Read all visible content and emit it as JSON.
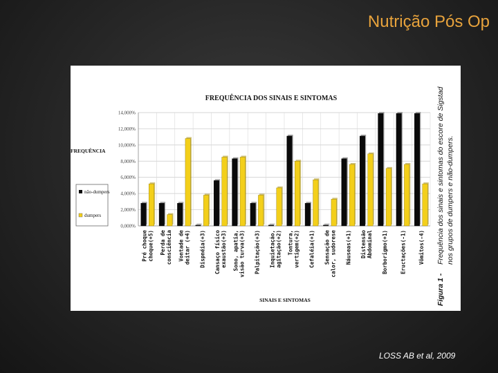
{
  "slide": {
    "title": "Nutrição Pós Op",
    "citation": "LOSS AB et al, 2009"
  },
  "figure_caption": {
    "label": "Figura 1 -",
    "text_line1": "Frequência dos sinais e sintomas do escore de Sigstad",
    "text_line2": "nos grupos de dumpers e não-dumpers."
  },
  "colors": {
    "nao_dumpers": "#0a0a0a",
    "dumpers": "#f3cf1a",
    "slide_title": "#e8a33c"
  },
  "chart_data": {
    "type": "bar",
    "title": "FREQUÊNCIA DOS SINAIS E SINTOMAS",
    "xlabel": "SINAIS E SINTOMAS",
    "ylabel": "FREQUÊNCIA",
    "ylim": [
      0,
      14
    ],
    "ytick_labels": [
      "0,000%",
      "2,000%",
      "4,000%",
      "6,000%",
      "8,000%",
      "10,000%",
      "12,000%",
      "14,000%"
    ],
    "legend_position": "left",
    "categories": [
      [
        "Pré choque",
        "choque(+5)"
      ],
      [
        "Perda de",
        "consciência"
      ],
      [
        "Vontade de",
        "deitar (+4)"
      ],
      [
        "Dispnéia(+3)"
      ],
      [
        "Cansaço físico",
        "exaustão(+3)"
      ],
      [
        "Sono, apatia,",
        "visão turva(+3)"
      ],
      [
        "Palpitação(+3)"
      ],
      [
        "Inquietação,",
        "agitação(+2)"
      ],
      [
        "Tontura,",
        "vertigem(+2)"
      ],
      [
        "Cefaléia(+1)"
      ],
      [
        "Sensação de",
        "calor, sudorese"
      ],
      [
        "Náuseas(+1)"
      ],
      [
        "Distensão",
        "Abdominal"
      ],
      [
        "Borborigmo(+1)"
      ],
      [
        "Eructações(-1)"
      ],
      [
        "Vômitos(-4)"
      ]
    ],
    "series": [
      {
        "name": "não-dumpers",
        "values": [
          2.8,
          2.8,
          2.8,
          0.1,
          5.6,
          8.3,
          2.8,
          0.1,
          11.1,
          2.8,
          0.1,
          8.3,
          11.1,
          13.9,
          13.9,
          13.9
        ]
      },
      {
        "name": "dumpers",
        "values": [
          5.2,
          1.4,
          10.8,
          3.8,
          8.5,
          8.5,
          3.8,
          4.7,
          8.0,
          5.7,
          3.3,
          7.6,
          8.9,
          7.1,
          7.6,
          5.2
        ]
      }
    ]
  }
}
